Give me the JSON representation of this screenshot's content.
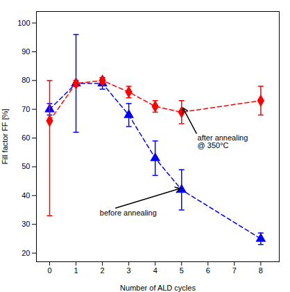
{
  "chart_data": {
    "type": "line",
    "xlabel": "Number of ALD cycles",
    "ylabel": "Fill factor FF [%]",
    "x": [
      0,
      1,
      2,
      3,
      4,
      5,
      8
    ],
    "series": [
      {
        "color": "#0000FF",
        "marker": "triangle",
        "line_style": "dashed",
        "values": [
          70,
          79,
          79,
          68,
          53,
          42,
          25
        ],
        "yerr": [
          2,
          17,
          2,
          4,
          6,
          7,
          2
        ]
      },
      {
        "color": "#FF0000",
        "marker": "diamond",
        "line_style": "dashed",
        "values": [
          66,
          79,
          80,
          76,
          71,
          69,
          73
        ],
        "yerr_lower": [
          33,
          1,
          1,
          2,
          2,
          4,
          5
        ],
        "yerr_upper": [
          14,
          1,
          1,
          2,
          2,
          4,
          5
        ]
      }
    ],
    "xlim": [
      -0.5,
      8.7
    ],
    "ylim": [
      17,
      104
    ],
    "xticks": [
      0,
      1,
      2,
      3,
      4,
      5,
      6,
      7,
      8
    ],
    "yticks": [
      20,
      30,
      40,
      50,
      60,
      70,
      80,
      90,
      100
    ],
    "annotations": [
      {
        "text": "before annealing",
        "x": 4.95,
        "y": 42.5,
        "text_x": 1.9,
        "text_y": 34.0
      },
      {
        "text": "after annealing\n@ 350°C",
        "x": 5.05,
        "y": 70.5,
        "text_x": 5.6,
        "text_y": 61.0
      }
    ]
  }
}
